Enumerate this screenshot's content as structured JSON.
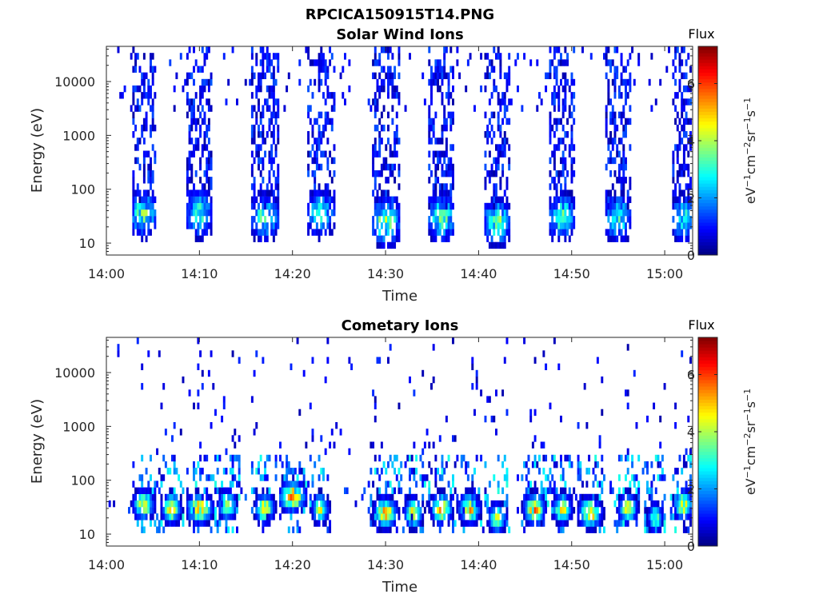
{
  "figure": {
    "title": "RPCICA150915T14.PNG"
  },
  "colors": {
    "colormap": "jet",
    "axis": "#262626"
  },
  "chart_data": [
    {
      "type": "heatmap",
      "title": "Solar Wind Ions",
      "xlabel": "Time",
      "ylabel": "Energy (eV)",
      "x_range": [
        "14:00",
        "15:03"
      ],
      "x_ticks": [
        "14:00",
        "14:10",
        "14:20",
        "14:30",
        "14:40",
        "14:50",
        "15:00"
      ],
      "y_scale": "log",
      "y_range": [
        6,
        45000
      ],
      "y_ticks": [
        "10",
        "100",
        "1000",
        "10000"
      ],
      "colorbar": {
        "title": "Flux",
        "label": "eV-1cm-2sr-1s-1",
        "range": [
          0,
          7.3
        ],
        "ticks": [
          "0",
          "2",
          "4",
          "6"
        ]
      },
      "grid": false,
      "bursts": [
        {
          "t": "14:04",
          "width_min": 2.6,
          "e_peak": 35,
          "flux_peak": 4.5
        },
        {
          "t": "14:10",
          "width_min": 2.6,
          "e_peak": 35,
          "flux_peak": 4.2
        },
        {
          "t": "14:17",
          "width_min": 3.0,
          "e_peak": 30,
          "flux_peak": 4.0
        },
        {
          "t": "14:23",
          "width_min": 3.0,
          "e_peak": 35,
          "flux_peak": 3.6
        },
        {
          "t": "14:30",
          "width_min": 3.0,
          "e_peak": 25,
          "flux_peak": 4.8
        },
        {
          "t": "14:36",
          "width_min": 2.8,
          "e_peak": 30,
          "flux_peak": 4.5
        },
        {
          "t": "14:42",
          "width_min": 2.8,
          "e_peak": 25,
          "flux_peak": 4.5
        },
        {
          "t": "14:49",
          "width_min": 2.8,
          "e_peak": 30,
          "flux_peak": 4.3
        },
        {
          "t": "14:55",
          "width_min": 2.8,
          "e_peak": 30,
          "flux_peak": 4.0
        },
        {
          "t": "15:02",
          "width_min": 2.6,
          "e_peak": 30,
          "flux_peak": 3.8
        }
      ]
    },
    {
      "type": "heatmap",
      "title": "Cometary Ions",
      "xlabel": "Time",
      "ylabel": "Energy (eV)",
      "x_range": [
        "14:00",
        "15:03"
      ],
      "x_ticks": [
        "14:00",
        "14:10",
        "14:20",
        "14:30",
        "14:40",
        "14:50",
        "15:00"
      ],
      "y_scale": "log",
      "y_range": [
        6,
        45000
      ],
      "y_ticks": [
        "10",
        "100",
        "1000",
        "10000"
      ],
      "colorbar": {
        "title": "Flux",
        "label": "eV-1cm-2sr-1s-1",
        "range": [
          0,
          7.3
        ],
        "ticks": [
          "0",
          "2",
          "4",
          "6"
        ]
      },
      "grid": false,
      "bursts": [
        {
          "t": "14:04",
          "width_min": 2.0,
          "e_peak": 35,
          "flux_peak": 5.5
        },
        {
          "t": "14:07",
          "width_min": 1.8,
          "e_peak": 30,
          "flux_peak": 6.0
        },
        {
          "t": "14:10",
          "width_min": 2.5,
          "e_peak": 30,
          "flux_peak": 6.2
        },
        {
          "t": "14:13",
          "width_min": 1.8,
          "e_peak": 35,
          "flux_peak": 5.0
        },
        {
          "t": "14:17",
          "width_min": 1.8,
          "e_peak": 30,
          "flux_peak": 6.0
        },
        {
          "t": "14:20",
          "width_min": 2.5,
          "e_peak": 50,
          "flux_peak": 6.8
        },
        {
          "t": "14:23",
          "width_min": 1.6,
          "e_peak": 30,
          "flux_peak": 5.0
        },
        {
          "t": "14:30",
          "width_min": 2.2,
          "e_peak": 25,
          "flux_peak": 6.3
        },
        {
          "t": "14:33",
          "width_min": 1.8,
          "e_peak": 25,
          "flux_peak": 5.5
        },
        {
          "t": "14:36",
          "width_min": 2.0,
          "e_peak": 30,
          "flux_peak": 6.3
        },
        {
          "t": "14:39",
          "width_min": 2.0,
          "e_peak": 30,
          "flux_peak": 6.0
        },
        {
          "t": "14:42",
          "width_min": 1.8,
          "e_peak": 20,
          "flux_peak": 5.0
        },
        {
          "t": "14:46",
          "width_min": 2.0,
          "e_peak": 30,
          "flux_peak": 6.5
        },
        {
          "t": "14:49",
          "width_min": 1.8,
          "e_peak": 30,
          "flux_peak": 5.8
        },
        {
          "t": "14:52",
          "width_min": 2.2,
          "e_peak": 25,
          "flux_peak": 6.3
        },
        {
          "t": "14:56",
          "width_min": 1.8,
          "e_peak": 30,
          "flux_peak": 5.5
        },
        {
          "t": "14:59",
          "width_min": 1.5,
          "e_peak": 20,
          "flux_peak": 4.2
        },
        {
          "t": "15:02",
          "width_min": 1.8,
          "e_peak": 35,
          "flux_peak": 5.8
        }
      ]
    }
  ]
}
